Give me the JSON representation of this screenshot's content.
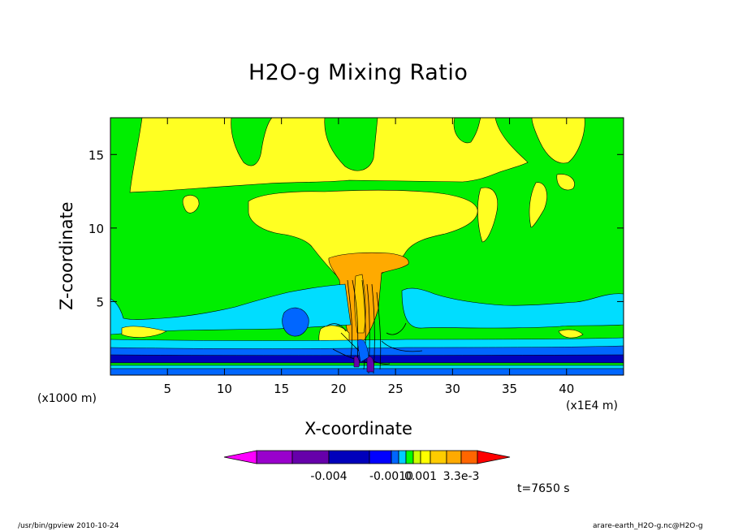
{
  "chart_data": {
    "type": "heatmap",
    "title": "H2O-g Mixing Ratio",
    "xlabel": "X-coordinate",
    "ylabel": "Z-coordinate",
    "x_unit_label": "(x1000 m)",
    "x_unit_label_2": "(x1E4 m)",
    "x_ticks": [
      5,
      10,
      15,
      20,
      25,
      30,
      35,
      40
    ],
    "y_ticks": [
      5,
      10,
      15
    ],
    "xlim": [
      0,
      45
    ],
    "ylim": [
      0,
      17.5
    ],
    "time_label": "t=7650 s",
    "colorbar": {
      "colors": [
        "#ff00ff",
        "#9900cc",
        "#6600aa",
        "#0000bb",
        "#0000ff",
        "#0066ff",
        "#00ccff",
        "#00ff00",
        "#ccff00",
        "#ffff00",
        "#ffcc00",
        "#ffaa00",
        "#ff6600",
        "#ff0000"
      ],
      "tick_labels": [
        "-0.004",
        "-0.0010",
        "0.001",
        "3.3e-3"
      ]
    },
    "fields": {
      "background": "#00ee00",
      "upper_yellow": "#ffff22",
      "core_orange": "#ffaa00",
      "core_light_orange": "#ffcc00",
      "low_cyan": "#00ddff",
      "low_blue": "#0066ff",
      "surface_dark_blue": "#0000bb",
      "surface_purple": "#6600aa"
    }
  },
  "footer": {
    "left": "/usr/bin/gpview  2010-10-24",
    "right": "arare-earth_H2O-g.nc@H2O-g"
  }
}
